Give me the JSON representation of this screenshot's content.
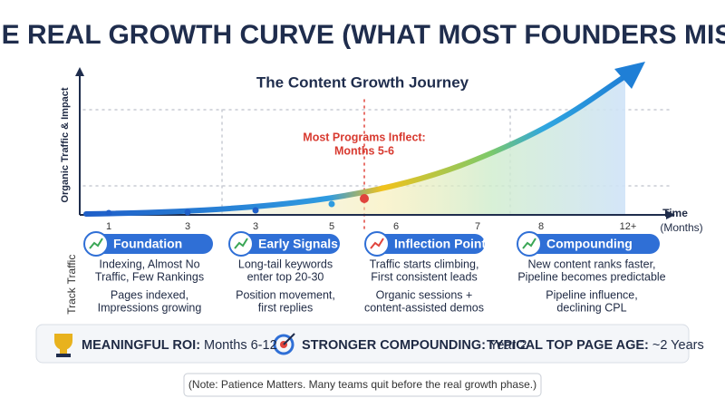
{
  "header": {
    "title": "THE REAL GROWTH CURVE (WHAT MOST FOUNDERS MISS)",
    "subtitle": "The Content Growth Journey"
  },
  "axes": {
    "y_label": "Organic Traffic & Impact",
    "x_label": [
      "Time",
      "(Months)"
    ],
    "x_ticks": [
      "1",
      "3",
      "3",
      "5",
      "6",
      "7",
      "8",
      "12+"
    ]
  },
  "annotation": [
    "Most Programs Inflect:",
    "Months 5-6"
  ],
  "row_labels": [
    "Traffic",
    "Track"
  ],
  "phases": [
    {
      "name": "Foundation",
      "traffic": [
        "Indexing, Almost No",
        "Traffic, Few Rankings"
      ],
      "track": [
        "Pages indexed,",
        "Impressions growing"
      ]
    },
    {
      "name": "Early Signals",
      "traffic": [
        "Long-tail keywords",
        "enter top 20-30"
      ],
      "track": [
        "Position movement,",
        "first replies"
      ]
    },
    {
      "name": "Inflection Point",
      "traffic": [
        "Traffic starts climbing,",
        "First consistent leads"
      ],
      "track": [
        "Organic sessions +",
        "content-assisted demos"
      ]
    },
    {
      "name": "Compounding",
      "traffic": [
        "New content ranks faster,",
        "Pipeline becomes predictable"
      ],
      "track": [
        "Pipeline influence,",
        "declining CPL"
      ]
    }
  ],
  "summary": [
    {
      "label": "MEANINGFUL ROI:",
      "value": "Months 6-12"
    },
    {
      "label": "STRONGER COMPOUNDING:",
      "value": "Year 2"
    },
    {
      "label": "TYPICAL TOP PAGE AGE:",
      "value": "~2 Years"
    }
  ],
  "note": "(Note: Patience Matters. Many teams quit before the real growth phase.)"
}
